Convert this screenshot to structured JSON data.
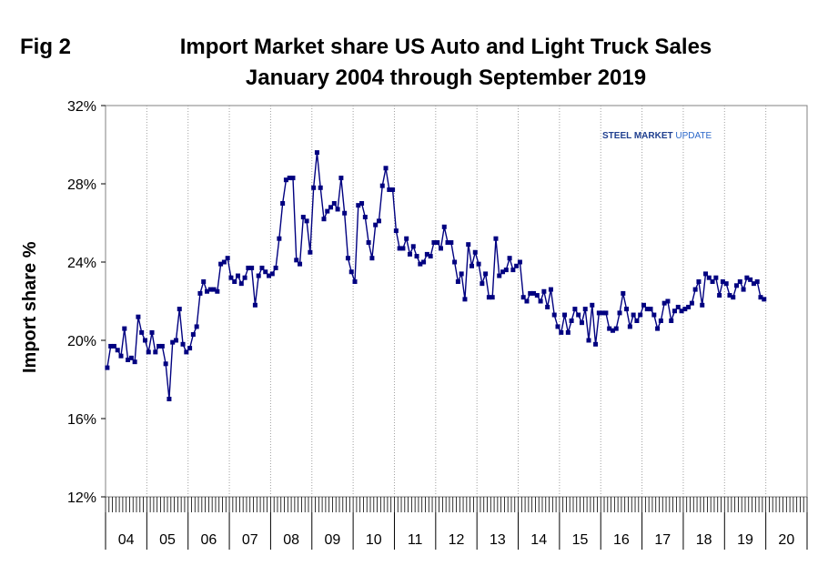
{
  "figure": {
    "label": "Fig 2",
    "title_line1": "Import Market share US Auto and Light Truck Sales",
    "title_line2": "January 2004 through September 2019",
    "logo_bold": "STEEL MARKET",
    "logo_light": " UPDATE"
  },
  "chart_data": {
    "type": "line",
    "title": "Import Market share US Auto and Light Truck Sales January 2004 through September 2019",
    "xlabel": "",
    "ylabel": "Import share %",
    "ylim": [
      12,
      32
    ],
    "yticks": [
      "12%",
      "16%",
      "20%",
      "24%",
      "28%",
      "32%"
    ],
    "ytick_values": [
      12,
      16,
      20,
      24,
      28,
      32
    ],
    "year_labels": [
      "04",
      "05",
      "06",
      "07",
      "08",
      "09",
      "10",
      "11",
      "12",
      "13",
      "14",
      "15",
      "16",
      "17",
      "18",
      "19",
      "20"
    ],
    "x_start": "2004-01",
    "x_end": "2019-09",
    "grid": "vertical dotted by year",
    "line_color": "#000080",
    "series": [
      {
        "values": [
          18.6,
          19.7,
          19.7,
          19.5,
          19.2,
          20.6,
          19.0,
          19.1,
          18.9,
          21.2,
          20.4,
          20.0,
          19.4,
          20.4,
          19.4,
          19.7,
          19.7,
          18.8,
          17.0,
          19.9,
          20.0,
          21.6,
          19.8,
          19.4,
          19.6,
          20.3,
          20.7,
          22.4,
          23.0,
          22.5,
          22.6,
          22.6,
          22.5,
          23.9,
          24.0,
          24.2,
          23.2,
          23.0,
          23.3,
          22.9,
          23.2,
          23.7,
          23.7,
          21.8,
          23.3,
          23.7,
          23.5,
          23.3,
          23.4,
          23.7,
          25.2,
          27.0,
          28.2,
          28.3,
          28.3,
          24.1,
          23.9,
          26.3,
          26.1,
          24.5,
          27.8,
          29.6,
          27.8,
          26.2,
          26.6,
          26.8,
          27.0,
          26.7,
          28.3,
          26.5,
          24.2,
          23.5,
          23.0,
          26.9,
          27.0,
          26.3,
          25.0,
          24.2,
          25.9,
          26.1,
          27.9,
          28.8,
          27.7,
          27.7,
          25.6,
          24.7,
          24.7,
          25.2,
          24.4,
          24.8,
          24.3,
          23.9,
          24.0,
          24.4,
          24.3,
          25.0,
          25.0,
          24.7,
          25.8,
          25.0,
          25.0,
          24.0,
          23.0,
          23.4,
          22.1,
          24.9,
          23.8,
          24.5,
          23.9,
          22.9,
          23.4,
          22.2,
          22.2,
          25.2,
          23.3,
          23.5,
          23.6,
          24.2,
          23.6,
          23.8,
          24.0,
          22.2,
          22.0,
          22.4,
          22.4,
          22.3,
          22.0,
          22.5,
          21.7,
          22.6,
          21.3,
          20.7,
          20.4,
          21.3,
          20.4,
          21.0,
          21.6,
          21.3,
          20.9,
          21.6,
          20.0,
          21.8,
          19.8,
          21.4,
          21.4,
          21.4,
          20.6,
          20.5,
          20.6,
          21.4,
          22.4,
          21.6,
          20.7,
          21.3,
          21.0,
          21.3,
          21.8,
          21.6,
          21.6,
          21.3,
          20.6,
          21.0,
          21.9,
          22.0,
          21.0,
          21.5,
          21.7,
          21.5,
          21.6,
          21.7,
          21.9,
          22.6,
          23.0,
          21.8,
          23.4,
          23.2,
          23.0,
          23.2,
          22.3,
          23.0,
          22.9,
          22.3,
          22.2,
          22.8,
          23.0,
          22.6,
          23.2,
          23.1,
          22.9,
          23.0,
          22.2,
          22.1
        ]
      }
    ]
  }
}
